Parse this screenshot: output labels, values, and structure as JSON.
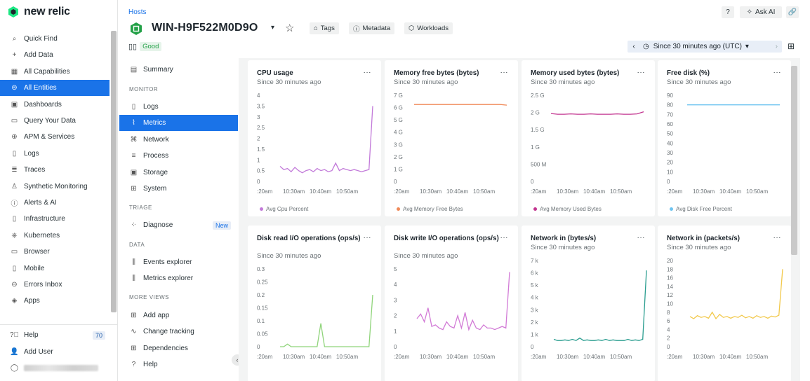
{
  "brand": {
    "logo_text": "new relic",
    "accent": "#1a73e8",
    "brand_green": "#1ce783"
  },
  "leftnav": {
    "items": [
      {
        "label": "Quick Find",
        "icon": "search-icon",
        "name": "nav-quick-find"
      },
      {
        "label": "Add Data",
        "icon": "plus-icon",
        "name": "nav-add-data"
      },
      {
        "label": "All Capabilities",
        "icon": "grid-icon",
        "name": "nav-all-capabilities"
      },
      {
        "label": "All Entities",
        "icon": "entities-icon",
        "name": "nav-all-entities",
        "active": true
      },
      {
        "label": "Dashboards",
        "icon": "dashboard-icon",
        "name": "nav-dashboards"
      },
      {
        "label": "Query Your Data",
        "icon": "terminal-icon",
        "name": "nav-query-your-data"
      },
      {
        "label": "APM & Services",
        "icon": "globe-icon",
        "name": "nav-apm-services"
      },
      {
        "label": "Logs",
        "icon": "logs-icon",
        "name": "nav-logs"
      },
      {
        "label": "Traces",
        "icon": "traces-icon",
        "name": "nav-traces"
      },
      {
        "label": "Synthetic Monitoring",
        "icon": "person-icon",
        "name": "nav-synthetic-monitoring"
      },
      {
        "label": "Alerts & AI",
        "icon": "alert-icon",
        "name": "nav-alerts-ai"
      },
      {
        "label": "Infrastructure",
        "icon": "infrastructure-icon",
        "name": "nav-infrastructure"
      },
      {
        "label": "Kubernetes",
        "icon": "kubernetes-icon",
        "name": "nav-kubernetes"
      },
      {
        "label": "Browser",
        "icon": "browser-icon",
        "name": "nav-browser"
      },
      {
        "label": "Mobile",
        "icon": "mobile-icon",
        "name": "nav-mobile"
      },
      {
        "label": "Errors Inbox",
        "icon": "inbox-icon",
        "name": "nav-errors-inbox"
      },
      {
        "label": "Apps",
        "icon": "apps-icon",
        "name": "nav-apps"
      }
    ],
    "help_label": "Help",
    "help_count": "70",
    "add_user_label": "Add User"
  },
  "header": {
    "breadcrumb": "Hosts",
    "entity_name": "WIN-H9F522M0D9O",
    "tags_label": "Tags",
    "metadata_label": "Metadata",
    "workloads_label": "Workloads",
    "status_label": "Good",
    "ask_ai_label": "Ask AI",
    "time_label": "Since 30 minutes ago (UTC)"
  },
  "subnav": {
    "summary": "Summary",
    "monitor_heading": "MONITOR",
    "monitor_items": [
      "Logs",
      "Metrics",
      "Network",
      "Process",
      "Storage",
      "System"
    ],
    "triage_heading": "TRIAGE",
    "diagnose": "Diagnose",
    "new_badge": "New",
    "data_heading": "DATA",
    "data_items": [
      "Events explorer",
      "Metrics explorer"
    ],
    "more_heading": "MORE VIEWS",
    "more_items": [
      "Add app",
      "Change tracking",
      "Dependencies",
      "Help"
    ]
  },
  "cards": [
    {
      "title": "CPU usage",
      "subtitle": "Since 30 minutes ago",
      "legend": "Avg Cpu Percent",
      "color": "#c27ad9"
    },
    {
      "title": "Memory free bytes (bytes)",
      "subtitle": "Since 30 minutes ago",
      "legend": "Avg Memory Free Bytes",
      "color": "#f08a59"
    },
    {
      "title": "Memory used bytes (bytes)",
      "subtitle": "Since 30 minutes ago",
      "legend": "Avg Memory Used Bytes",
      "color": "#c2348f"
    },
    {
      "title": "Free disk (%)",
      "subtitle": "Since 30 minutes ago",
      "legend": "Avg Disk Free Percent",
      "color": "#6ec4f0"
    },
    {
      "title": "Disk read I/O operations (ops/s)",
      "subtitle": "Since 30 minutes ago",
      "color": "#8fd47a"
    },
    {
      "title": "Disk write I/O operations (ops/s)",
      "subtitle": "Since 30 minutes ago",
      "color": "#d27ad6"
    },
    {
      "title": "Network in (bytes/s)",
      "subtitle": "Since 30 minutes ago",
      "color": "#2a9d8f"
    },
    {
      "title": "Network in (packets/s)",
      "subtitle": "Since 30 minutes ago",
      "color": "#f2c94c"
    }
  ],
  "chart_data": [
    {
      "type": "line",
      "title": "CPU usage",
      "x_ticks": [
        ":20am",
        "10:30am",
        "10:40am",
        "10:50am"
      ],
      "y_ticks": [
        "0",
        "0.5",
        "1",
        "1.5",
        "2",
        "2.5",
        "3",
        "3.5",
        "4"
      ],
      "ylim": [
        0,
        4
      ],
      "series": [
        {
          "name": "Avg Cpu Percent",
          "values": [
            0.7,
            0.55,
            0.6,
            0.45,
            0.65,
            0.5,
            0.4,
            0.5,
            0.55,
            0.45,
            0.6,
            0.5,
            0.55,
            0.45,
            0.5,
            0.85,
            0.5,
            0.6,
            0.55,
            0.5,
            0.55,
            0.5,
            0.45,
            0.5,
            0.55,
            3.5
          ]
        }
      ]
    },
    {
      "type": "line",
      "title": "Memory free bytes (bytes)",
      "x_ticks": [
        ":20am",
        "10:30am",
        "10:40am",
        "10:50am"
      ],
      "y_ticks": [
        "0",
        "1 G",
        "2 G",
        "3 G",
        "4 G",
        "5 G",
        "6 G",
        "7 G"
      ],
      "ylim": [
        0,
        7
      ],
      "series": [
        {
          "name": "Avg Memory Free Bytes",
          "values": [
            6.25,
            6.25,
            6.25,
            6.25,
            6.25,
            6.25,
            6.25,
            6.25,
            6.25,
            6.25,
            6.25,
            6.25,
            6.25,
            6.25,
            6.2
          ]
        }
      ]
    },
    {
      "type": "line",
      "title": "Memory used bytes (bytes)",
      "x_ticks": [
        ":20am",
        "10:30am",
        "10:40am",
        "10:50am"
      ],
      "y_ticks": [
        "0",
        "500 M",
        "1 G",
        "1.5 G",
        "2 G",
        "2.5 G"
      ],
      "ylim": [
        0,
        2.5
      ],
      "series": [
        {
          "name": "Avg Memory Used Bytes",
          "values": [
            1.97,
            1.95,
            1.95,
            1.96,
            1.95,
            1.95,
            1.96,
            1.95,
            1.95,
            1.95,
            1.96,
            1.95,
            1.95,
            1.96,
            2.02
          ]
        }
      ]
    },
    {
      "type": "line",
      "title": "Free disk (%)",
      "x_ticks": [
        ":20am",
        "10:30am",
        "10:40am",
        "10:50am"
      ],
      "y_ticks": [
        "0",
        "10",
        "20",
        "30",
        "40",
        "50",
        "60",
        "70",
        "80",
        "90"
      ],
      "ylim": [
        0,
        90
      ],
      "series": [
        {
          "name": "Avg Disk Free Percent",
          "values": [
            80,
            80,
            80,
            80,
            80,
            80,
            80,
            80,
            80,
            80,
            80,
            80,
            80,
            80,
            80
          ]
        }
      ]
    },
    {
      "type": "line",
      "title": "Disk read I/O operations (ops/s)",
      "x_ticks": [
        ":20am",
        "10:30am",
        "10:40am",
        "10:50am"
      ],
      "y_ticks": [
        "0",
        "0.05",
        "0.1",
        "0.15",
        "0.2",
        "0.25",
        "0.3"
      ],
      "ylim": [
        0,
        0.3
      ],
      "series": [
        {
          "name": "Disk read",
          "values": [
            0,
            0,
            0.01,
            0,
            0,
            0,
            0,
            0,
            0,
            0,
            0,
            0.09,
            0,
            0,
            0,
            0,
            0,
            0,
            0,
            0,
            0,
            0,
            0,
            0,
            0,
            0.2
          ]
        }
      ]
    },
    {
      "type": "line",
      "title": "Disk write I/O operations (ops/s)",
      "x_ticks": [
        ":20am",
        "10:30am",
        "10:40am",
        "10:50am"
      ],
      "y_ticks": [
        "0",
        "1",
        "2",
        "3",
        "4",
        "5"
      ],
      "ylim": [
        0,
        5
      ],
      "series": [
        {
          "name": "Disk write",
          "values": [
            1.8,
            2.1,
            1.6,
            2.5,
            1.3,
            1.4,
            1.2,
            1.1,
            1.6,
            1.3,
            1.2,
            2,
            1.2,
            2.2,
            1.1,
            1.7,
            1.2,
            1.1,
            1.4,
            1.2,
            1.2,
            1.1,
            1.2,
            1.3,
            1.2,
            4.8
          ]
        }
      ]
    },
    {
      "type": "line",
      "title": "Network in (bytes/s)",
      "x_ticks": [
        ":20am",
        "10:30am",
        "10:40am",
        "10:50am"
      ],
      "y_ticks": [
        "0",
        "1 k",
        "2 k",
        "3 k",
        "4 k",
        "5 k",
        "6 k",
        "7 k"
      ],
      "ylim": [
        0,
        7
      ],
      "series": [
        {
          "name": "Network in bytes",
          "values": [
            0.6,
            0.5,
            0.5,
            0.55,
            0.5,
            0.6,
            0.5,
            0.7,
            0.5,
            0.55,
            0.5,
            0.5,
            0.55,
            0.5,
            0.6,
            0.5,
            0.55,
            0.5,
            0.5,
            0.5,
            0.6,
            0.5,
            0.55,
            0.5,
            0.6,
            6.2
          ]
        }
      ]
    },
    {
      "type": "line",
      "title": "Network in (packets/s)",
      "x_ticks": [
        ":20am",
        "10:30am",
        "10:40am",
        "10:50am"
      ],
      "y_ticks": [
        "0",
        "2",
        "4",
        "6",
        "8",
        "10",
        "12",
        "14",
        "16",
        "18",
        "20"
      ],
      "ylim": [
        0,
        20
      ],
      "series": [
        {
          "name": "Network in packets",
          "values": [
            7,
            6.5,
            7.2,
            6.8,
            7,
            6.6,
            8,
            6.5,
            7.5,
            6.8,
            7,
            6.6,
            7,
            6.8,
            7.3,
            6.7,
            7,
            6.6,
            7.2,
            6.8,
            7,
            6.6,
            7.1,
            6.9,
            7.3,
            18
          ]
        }
      ]
    }
  ]
}
